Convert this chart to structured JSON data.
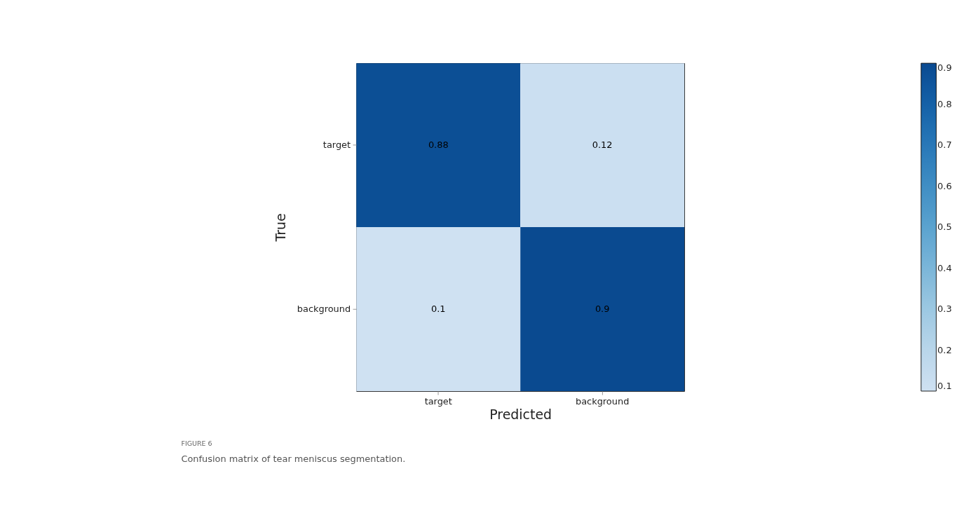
{
  "chart_data": {
    "type": "heatmap",
    "categories": [
      "target",
      "background"
    ],
    "y_categories": [
      "target",
      "background"
    ],
    "cells": [
      [
        0.88,
        0.12
      ],
      [
        0.1,
        0.9
      ]
    ],
    "clim": [
      0.1,
      0.9
    ],
    "cticks": [
      0.1,
      0.2,
      0.3,
      0.4,
      0.5,
      0.6,
      0.7,
      0.8,
      0.9
    ],
    "xlabel": "Predicted",
    "ylabel": "True",
    "data_labels": true,
    "annotations": [
      "FIGURE 6",
      "Confusion matrix of tear meniscus segmentation."
    ]
  }
}
